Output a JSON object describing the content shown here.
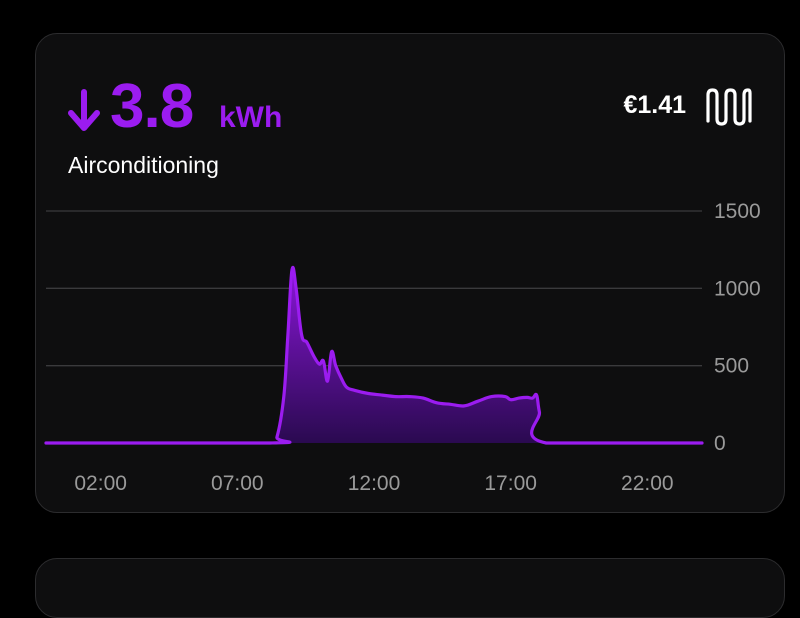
{
  "header": {
    "arrow_icon": "arrow-down-icon",
    "value": "3.8",
    "unit": "kWh",
    "device_name": "Airconditioning",
    "cost": "€1.41",
    "device_icon": "heater-icon"
  },
  "colors": {
    "accent": "#9b1cf0",
    "card_background": "#0e0e0f",
    "gridline": "#3a3a3c",
    "tick_label": "#9a9a9a"
  },
  "chart_data": {
    "type": "area",
    "title": "",
    "xlabel": "",
    "ylabel": "",
    "xlim": [
      0,
      24
    ],
    "ylim": [
      0,
      1500
    ],
    "x_ticks": [
      "02:00",
      "07:00",
      "12:00",
      "17:00",
      "22:00"
    ],
    "x_tick_values": [
      2,
      7,
      12,
      17,
      22
    ],
    "y_ticks": [
      "0",
      "500",
      "1000",
      "1500"
    ],
    "y_tick_values": [
      0,
      500,
      1000,
      1500
    ],
    "grid": true,
    "series": [
      {
        "x": [
          0,
          8.2,
          8.45,
          8.7,
          8.85,
          9.0,
          9.15,
          9.35,
          9.55,
          9.8,
          10.0,
          10.15,
          10.3,
          10.45,
          10.6,
          10.8,
          11.0,
          11.3,
          11.8,
          12.3,
          12.8,
          13.3,
          13.8,
          14.3,
          14.8,
          15.3,
          15.8,
          16.3,
          16.8,
          17.0,
          17.3,
          17.6,
          17.8,
          17.95,
          18.05,
          18.3,
          24
        ],
        "y": [
          0,
          0,
          40,
          300,
          700,
          1120,
          1000,
          700,
          650,
          560,
          510,
          530,
          400,
          590,
          500,
          420,
          360,
          340,
          320,
          310,
          300,
          300,
          290,
          260,
          250,
          240,
          270,
          300,
          300,
          280,
          290,
          295,
          290,
          310,
          200,
          0,
          0
        ]
      }
    ]
  }
}
